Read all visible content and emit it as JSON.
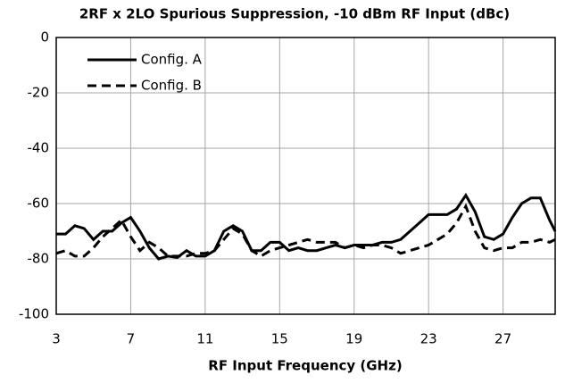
{
  "chart_data": {
    "type": "line",
    "title": "2RF x 2LO Spurious Suppression, -10 dBm RF Input (dBc)",
    "x_label": "RF Input Frequency (GHz)",
    "x": [
      3,
      3.5,
      4,
      4.5,
      5,
      5.5,
      6,
      6.5,
      7,
      7.5,
      8,
      8.5,
      9,
      9.5,
      10,
      10.5,
      11,
      11.5,
      12,
      12.5,
      13,
      13.5,
      14,
      14.5,
      15,
      15.5,
      16,
      16.5,
      17,
      17.5,
      18,
      18.5,
      19,
      19.5,
      20,
      20.5,
      21,
      21.5,
      22,
      22.5,
      23,
      23.5,
      24,
      24.5,
      25,
      25.5,
      26,
      26.5,
      27,
      27.5,
      28,
      28.5,
      29,
      29.5,
      29.8
    ],
    "series": [
      {
        "name": "Config. A",
        "color": "#000000",
        "dash": "solid",
        "values": [
          -71,
          -71,
          -68,
          -69,
          -73,
          -70,
          -70,
          -67,
          -65,
          -70,
          -76,
          -80,
          -79,
          -79.5,
          -77,
          -79,
          -79,
          -77,
          -70,
          -68,
          -70,
          -77,
          -77,
          -74,
          -74,
          -77,
          -76,
          -77,
          -77,
          -76,
          -75,
          -76,
          -75,
          -75,
          -75,
          -74,
          -74,
          -73,
          -70,
          -67,
          -64,
          -64,
          -64,
          -62,
          -57,
          -63,
          -72,
          -73,
          -71,
          -65,
          -60,
          -58,
          -58,
          -66,
          -70
        ]
      },
      {
        "name": "Config. B",
        "color": "#000000",
        "dash": "dashed",
        "values": [
          -78,
          -77,
          -79,
          -79,
          -76,
          -72,
          -69,
          -66,
          -72,
          -77,
          -74,
          -76,
          -79,
          -79,
          -79,
          -78,
          -78,
          -77,
          -73,
          -69,
          -71,
          -77,
          -79,
          -77,
          -76,
          -75,
          -74,
          -73,
          -74,
          -74,
          -74,
          -76,
          -75,
          -76,
          -75,
          -75,
          -76,
          -78,
          -77,
          -76,
          -75,
          -73,
          -71,
          -67,
          -61,
          -70,
          -76,
          -77,
          -76,
          -76,
          -74,
          -74,
          -73,
          -74,
          -73
        ]
      }
    ],
    "xlim": [
      3,
      29.8
    ],
    "xticks": [
      3,
      7,
      11,
      15,
      19,
      23,
      27
    ],
    "ylim": [
      -100,
      0
    ],
    "yticks": [
      0,
      -20,
      -40,
      -60,
      -80,
      -100
    ],
    "grid": true,
    "legend": "upper left"
  }
}
